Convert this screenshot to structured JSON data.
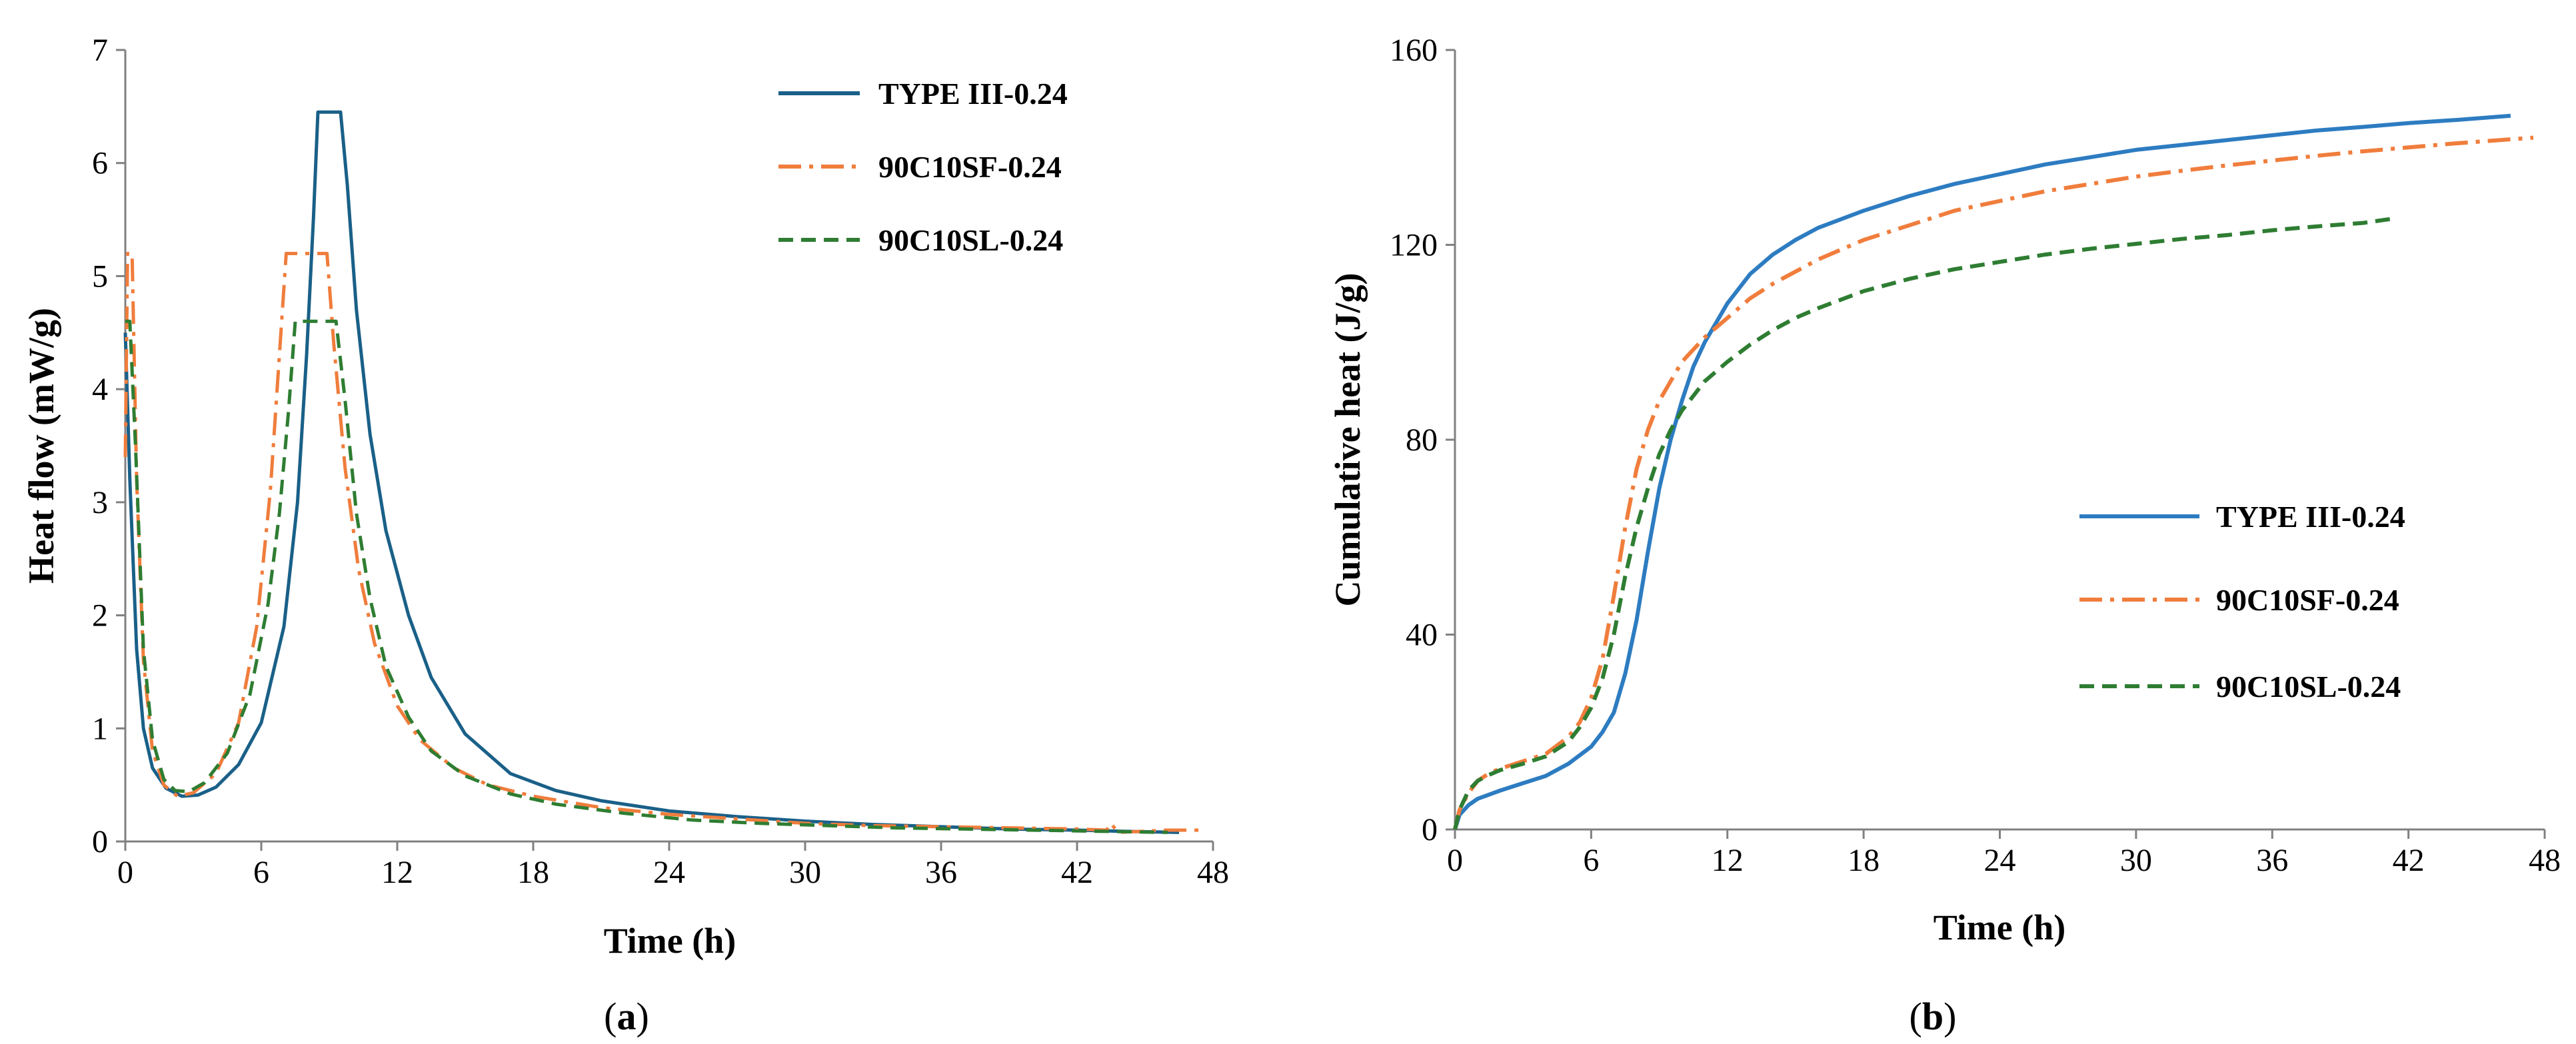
{
  "chart_data": [
    {
      "type": "line",
      "caption_letter": "a",
      "title": "",
      "xlabel": "Time (h)",
      "ylabel": "Heat flow (mW/g)",
      "xlim": [
        0,
        48
      ],
      "ylim": [
        0,
        7
      ],
      "xticks": [
        "0",
        "6",
        "12",
        "18",
        "24",
        "30",
        "36",
        "42",
        "48"
      ],
      "yticks": [
        "0",
        "1",
        "2",
        "3",
        "4",
        "5",
        "6",
        "7"
      ],
      "grid": false,
      "legend_position": "top-right",
      "series": [
        {
          "name": "TYPE III-0.24",
          "color": "#1a6088",
          "dash": "solid",
          "points": [
            [
              0,
              4.5
            ],
            [
              0.2,
              3.2
            ],
            [
              0.5,
              1.7
            ],
            [
              0.8,
              1.0
            ],
            [
              1.2,
              0.65
            ],
            [
              1.8,
              0.47
            ],
            [
              2.5,
              0.4
            ],
            [
              3.2,
              0.41
            ],
            [
              4,
              0.48
            ],
            [
              5,
              0.68
            ],
            [
              6,
              1.05
            ],
            [
              7,
              1.9
            ],
            [
              7.6,
              3.0
            ],
            [
              8,
              4.3
            ],
            [
              8.3,
              5.5
            ],
            [
              8.5,
              6.45
            ],
            [
              9.5,
              6.45
            ],
            [
              9.8,
              5.8
            ],
            [
              10.2,
              4.7
            ],
            [
              10.8,
              3.6
            ],
            [
              11.5,
              2.75
            ],
            [
              12.5,
              2.0
            ],
            [
              13.5,
              1.45
            ],
            [
              15,
              0.95
            ],
            [
              17,
              0.6
            ],
            [
              19,
              0.45
            ],
            [
              21,
              0.36
            ],
            [
              24,
              0.27
            ],
            [
              27,
              0.22
            ],
            [
              30,
              0.18
            ],
            [
              33,
              0.15
            ],
            [
              36,
              0.13
            ],
            [
              39,
              0.11
            ],
            [
              42,
              0.1
            ],
            [
              44,
              0.09
            ],
            [
              46.5,
              0.08
            ]
          ]
        },
        {
          "name": "90C10SF-0.24",
          "color": "#f07d3c",
          "dash": "dashdot",
          "points": [
            [
              0,
              3.4
            ],
            [
              0.1,
              5.2
            ],
            [
              0.3,
              5.2
            ],
            [
              0.5,
              3.2
            ],
            [
              0.8,
              1.6
            ],
            [
              1.2,
              0.8
            ],
            [
              1.7,
              0.5
            ],
            [
              2.3,
              0.4
            ],
            [
              3,
              0.43
            ],
            [
              4,
              0.6
            ],
            [
              5,
              1.05
            ],
            [
              5.8,
              1.9
            ],
            [
              6.4,
              3.1
            ],
            [
              6.8,
              4.3
            ],
            [
              7.1,
              5.2
            ],
            [
              8.9,
              5.2
            ],
            [
              9.2,
              4.4
            ],
            [
              9.7,
              3.3
            ],
            [
              10.3,
              2.4
            ],
            [
              11,
              1.75
            ],
            [
              12,
              1.2
            ],
            [
              13,
              0.9
            ],
            [
              14.5,
              0.65
            ],
            [
              16,
              0.5
            ],
            [
              18,
              0.4
            ],
            [
              21,
              0.3
            ],
            [
              24,
              0.24
            ],
            [
              27,
              0.2
            ],
            [
              30,
              0.16
            ],
            [
              33,
              0.14
            ],
            [
              36,
              0.13
            ],
            [
              39,
              0.12
            ],
            [
              42,
              0.11
            ],
            [
              43.3,
              0.1
            ],
            [
              43.5,
              0.16
            ],
            [
              43.8,
              0.08
            ],
            [
              46,
              0.1
            ],
            [
              47.5,
              0.1
            ]
          ]
        },
        {
          "name": "90C10SL-0.24",
          "color": "#2e7d32",
          "dash": "dashed",
          "points": [
            [
              0,
              4.6
            ],
            [
              0.2,
              4.6
            ],
            [
              0.45,
              3.5
            ],
            [
              0.8,
              1.7
            ],
            [
              1.2,
              0.9
            ],
            [
              1.7,
              0.55
            ],
            [
              2.2,
              0.45
            ],
            [
              2.8,
              0.44
            ],
            [
              3.5,
              0.52
            ],
            [
              4.5,
              0.78
            ],
            [
              5.5,
              1.3
            ],
            [
              6.3,
              2.1
            ],
            [
              6.8,
              2.9
            ],
            [
              7.2,
              3.8
            ],
            [
              7.5,
              4.6
            ],
            [
              9.3,
              4.6
            ],
            [
              9.7,
              3.9
            ],
            [
              10.2,
              2.9
            ],
            [
              10.8,
              2.15
            ],
            [
              11.5,
              1.55
            ],
            [
              12.5,
              1.1
            ],
            [
              13.5,
              0.8
            ],
            [
              15,
              0.58
            ],
            [
              17,
              0.42
            ],
            [
              19,
              0.33
            ],
            [
              22,
              0.25
            ],
            [
              25,
              0.19
            ],
            [
              28,
              0.16
            ],
            [
              31,
              0.14
            ],
            [
              34,
              0.12
            ],
            [
              37,
              0.11
            ],
            [
              40,
              0.1
            ],
            [
              43,
              0.09
            ],
            [
              46,
              0.08
            ]
          ]
        }
      ]
    },
    {
      "type": "line",
      "caption_letter": "b",
      "title": "",
      "xlabel": "Time (h)",
      "ylabel": "Cumulative heat (J/g)",
      "xlim": [
        0,
        48
      ],
      "ylim": [
        0,
        160
      ],
      "xticks": [
        "0",
        "6",
        "12",
        "18",
        "24",
        "30",
        "36",
        "42",
        "48"
      ],
      "yticks": [
        "0",
        "40",
        "80",
        "120",
        "160"
      ],
      "grid": false,
      "legend_position": "center-right",
      "series": [
        {
          "name": "TYPE III-0.24",
          "color": "#2d7cc1",
          "dash": "solid",
          "points": [
            [
              0,
              0
            ],
            [
              0.2,
              3
            ],
            [
              0.6,
              5
            ],
            [
              1,
              6.3
            ],
            [
              2,
              8
            ],
            [
              3,
              9.5
            ],
            [
              4,
              11
            ],
            [
              5,
              13.5
            ],
            [
              6,
              17
            ],
            [
              6.5,
              20
            ],
            [
              7,
              24
            ],
            [
              7.5,
              32
            ],
            [
              8,
              43
            ],
            [
              8.5,
              57
            ],
            [
              9,
              70
            ],
            [
              9.5,
              80
            ],
            [
              10,
              88
            ],
            [
              10.5,
              95
            ],
            [
              11,
              100
            ],
            [
              12,
              108
            ],
            [
              13,
              114
            ],
            [
              14,
              118
            ],
            [
              15,
              121
            ],
            [
              16,
              123.5
            ],
            [
              18,
              127
            ],
            [
              20,
              130
            ],
            [
              22,
              132.5
            ],
            [
              24,
              134.5
            ],
            [
              26,
              136.5
            ],
            [
              28,
              138
            ],
            [
              30,
              139.5
            ],
            [
              32,
              140.5
            ],
            [
              34,
              141.5
            ],
            [
              36,
              142.5
            ],
            [
              38,
              143.5
            ],
            [
              40,
              144.2
            ],
            [
              42,
              145
            ],
            [
              44,
              145.6
            ],
            [
              46.5,
              146.5
            ]
          ]
        },
        {
          "name": "90C10SF-0.24",
          "color": "#f07d3c",
          "dash": "dashdot",
          "points": [
            [
              0,
              0
            ],
            [
              0.2,
              4
            ],
            [
              0.6,
              7.5
            ],
            [
              1,
              10
            ],
            [
              1.5,
              11.5
            ],
            [
              2,
              12.5
            ],
            [
              3,
              14
            ],
            [
              4,
              15.5
            ],
            [
              5,
              19
            ],
            [
              5.5,
              22
            ],
            [
              6,
              27
            ],
            [
              6.5,
              35
            ],
            [
              7,
              48
            ],
            [
              7.5,
              62
            ],
            [
              8,
              74
            ],
            [
              8.5,
              82
            ],
            [
              9,
              88
            ],
            [
              9.5,
              92
            ],
            [
              10,
              96
            ],
            [
              11,
              101
            ],
            [
              12,
              105
            ],
            [
              13,
              109
            ],
            [
              14,
              112
            ],
            [
              15,
              114.5
            ],
            [
              16,
              117
            ],
            [
              18,
              121
            ],
            [
              20,
              124
            ],
            [
              22,
              127
            ],
            [
              24,
              129
            ],
            [
              26,
              131
            ],
            [
              28,
              132.5
            ],
            [
              30,
              134
            ],
            [
              32,
              135.2
            ],
            [
              34,
              136.3
            ],
            [
              36,
              137.3
            ],
            [
              38,
              138.3
            ],
            [
              40,
              139.2
            ],
            [
              42,
              140
            ],
            [
              44,
              140.8
            ],
            [
              47.5,
              142
            ]
          ]
        },
        {
          "name": "90C10SL-0.24",
          "color": "#2e7d32",
          "dash": "dashed",
          "points": [
            [
              0,
              0
            ],
            [
              0.2,
              4
            ],
            [
              0.6,
              8
            ],
            [
              1,
              10
            ],
            [
              1.5,
              11.2
            ],
            [
              2,
              12.2
            ],
            [
              3,
              13.5
            ],
            [
              4,
              15
            ],
            [
              5,
              18
            ],
            [
              5.5,
              21
            ],
            [
              6,
              25
            ],
            [
              6.5,
              31
            ],
            [
              7,
              40
            ],
            [
              7.5,
              52
            ],
            [
              8,
              62
            ],
            [
              8.5,
              70
            ],
            [
              9,
              77
            ],
            [
              9.5,
              82
            ],
            [
              10,
              86
            ],
            [
              10.5,
              89
            ],
            [
              11,
              92
            ],
            [
              12,
              96
            ],
            [
              13,
              99.5
            ],
            [
              14,
              102.5
            ],
            [
              15,
              105
            ],
            [
              16,
              107
            ],
            [
              18,
              110.5
            ],
            [
              20,
              113
            ],
            [
              22,
              115
            ],
            [
              24,
              116.5
            ],
            [
              26,
              118
            ],
            [
              28,
              119.2
            ],
            [
              30,
              120.2
            ],
            [
              32,
              121.2
            ],
            [
              34,
              122
            ],
            [
              36,
              123
            ],
            [
              38,
              123.8
            ],
            [
              40,
              124.5
            ],
            [
              41.5,
              125.5
            ]
          ]
        }
      ]
    }
  ]
}
